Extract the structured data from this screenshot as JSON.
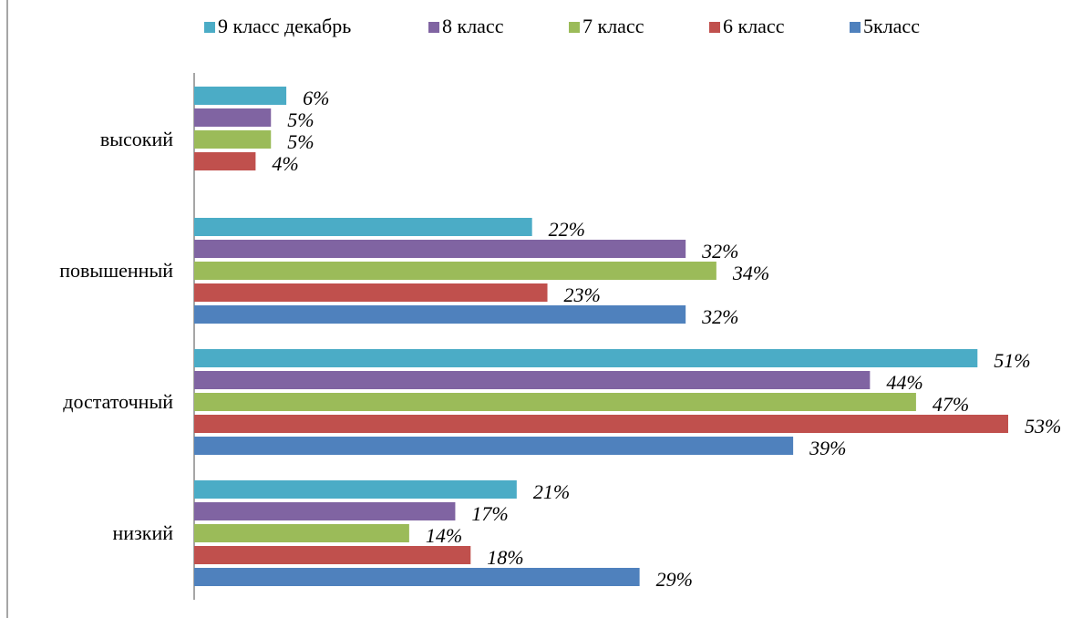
{
  "chart_data": {
    "type": "bar",
    "orientation": "horizontal",
    "categories": [
      "высокий",
      "повышенный",
      "достаточный",
      "низкий"
    ],
    "series": [
      {
        "name": "9 класс декабрь",
        "color": "#4bacc6",
        "values": [
          6,
          22,
          51,
          21
        ],
        "value_labels": [
          "6%",
          "22%",
          "51%",
          "21%"
        ]
      },
      {
        "name": "8 класс",
        "color": "#8064a2",
        "values": [
          5,
          32,
          44,
          17
        ],
        "value_labels": [
          "5%",
          "32%",
          "44%",
          "17%"
        ]
      },
      {
        "name": "7 класс",
        "color": "#9bbb59",
        "values": [
          5,
          34,
          47,
          14
        ],
        "value_labels": [
          "5%",
          "34%",
          "47%",
          "14%"
        ]
      },
      {
        "name": "6 класс",
        "color": "#c0504d",
        "values": [
          4,
          23,
          53,
          18
        ],
        "value_labels": [
          "4%",
          "23%",
          "53%",
          "18%"
        ]
      },
      {
        "name": "5класс",
        "color": "#4f81bd",
        "values": [
          null,
          32,
          39,
          29
        ],
        "value_labels": [
          null,
          "32%",
          "39%",
          "29%"
        ]
      }
    ],
    "legend": "top"
  }
}
